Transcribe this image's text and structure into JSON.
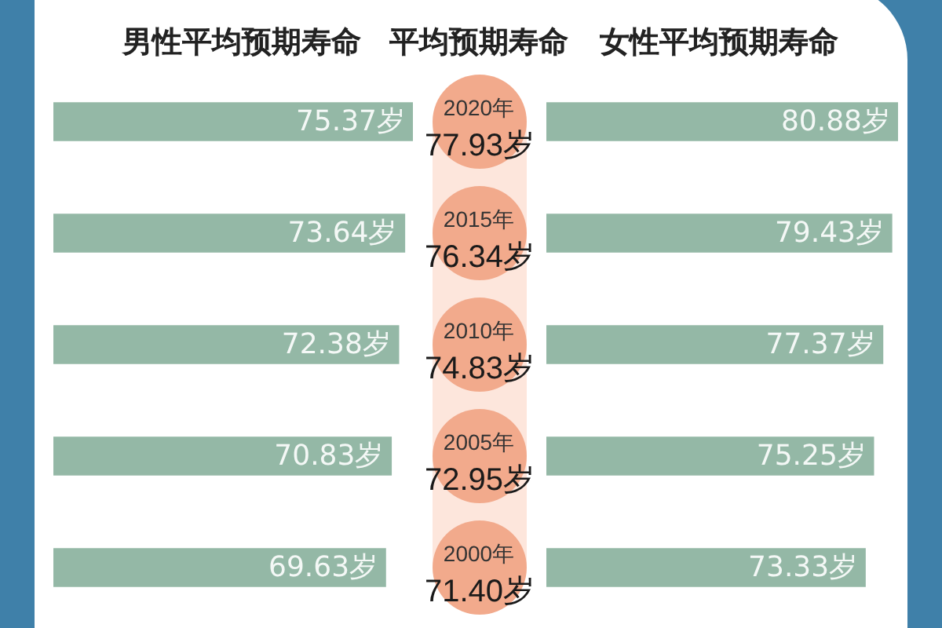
{
  "chart_data": [
    {
      "type": "bar",
      "orientation": "horizontal",
      "title": "男性平均预期寿命",
      "categories": [
        "2020年",
        "2015年",
        "2010年",
        "2005年",
        "2000年"
      ],
      "values": [
        75.37,
        73.64,
        72.38,
        70.83,
        69.63
      ],
      "value_labels": [
        "75.37岁",
        "73.64岁",
        "72.38岁",
        "70.83岁",
        "69.63岁"
      ],
      "color": "#94b8a6",
      "tick_labels": "y"
    },
    {
      "type": "other",
      "title": "平均预期寿命",
      "values": [
        77.93,
        76.34,
        74.83,
        72.95,
        71.4
      ],
      "value_labels": [
        "77.93岁",
        "76.34岁",
        "74.83岁",
        "72.95岁",
        "71.40岁"
      ],
      "color": "#f2aa8c"
    },
    {
      "type": "bar",
      "orientation": "horizontal",
      "title": "女性平均预期寿命",
      "categories": [
        null,
        null,
        null,
        null,
        null
      ],
      "values": [
        80.88,
        79.43,
        77.37,
        75.25,
        73.33
      ],
      "value_labels": [
        "80.88岁",
        "79.43岁",
        "77.37岁",
        "75.25岁",
        "73.33岁"
      ],
      "color": "#94b8a6",
      "tick_labels": false
    }
  ]
}
